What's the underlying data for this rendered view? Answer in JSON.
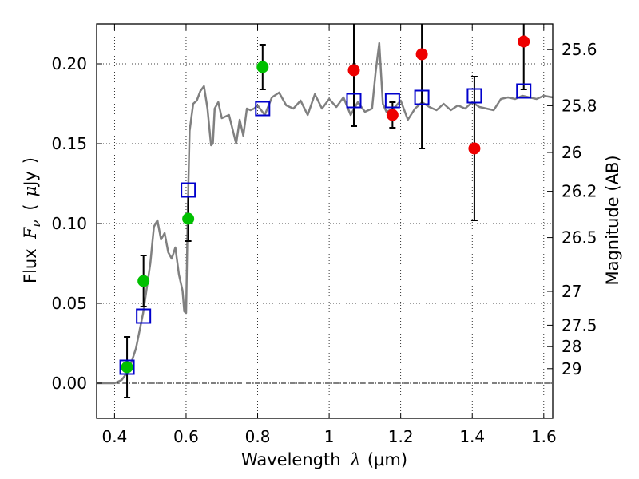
{
  "chart_data": {
    "type": "scatter",
    "xlabel": "Wavelength",
    "xlabel_symbol": "λ",
    "xlabel_unit": "(μm)",
    "ylabel": "Flux",
    "ylabel_symbol": "F",
    "ylabel_sub": "ν",
    "ylabel_unit_open": "(",
    "ylabel_unit_mu": "μ",
    "ylabel_unit": "Jy",
    "ylabel_unit_close": ")",
    "y2label": "Magnitude (AB)",
    "xlim": [
      0.35,
      1.625
    ],
    "ylim": [
      -0.022,
      0.225
    ],
    "grid": true,
    "x_ticks": [
      0.4,
      0.6,
      0.8,
      1.0,
      1.2,
      1.4,
      1.6
    ],
    "x_tick_labels": [
      "0.4",
      "0.6",
      "0.8",
      "1",
      "1.2",
      "1.4",
      "1.6"
    ],
    "y_ticks": [
      0.0,
      0.05,
      0.1,
      0.15,
      0.2
    ],
    "y_tick_labels": [
      "0.00",
      "0.05",
      "0.10",
      "0.15",
      "0.20"
    ],
    "mag_ticks": [
      {
        "label": "25.6",
        "flux": 0.2089
      },
      {
        "label": "25.8",
        "flux": 0.1738
      },
      {
        "label": "26",
        "flux": 0.1445
      },
      {
        "label": "26.2",
        "flux": 0.1202
      },
      {
        "label": "26.5",
        "flux": 0.0912
      },
      {
        "label": "27",
        "flux": 0.0575
      },
      {
        "label": "27.5",
        "flux": 0.0363
      },
      {
        "label": "28",
        "flux": 0.0229
      },
      {
        "label": "29",
        "flux": 0.0091
      }
    ],
    "model_spectrum": {
      "x": [
        0.35,
        0.4,
        0.42,
        0.44,
        0.46,
        0.48,
        0.5,
        0.51,
        0.52,
        0.53,
        0.54,
        0.55,
        0.56,
        0.57,
        0.58,
        0.59,
        0.595,
        0.6,
        0.605,
        0.61,
        0.62,
        0.63,
        0.64,
        0.65,
        0.66,
        0.665,
        0.67,
        0.675,
        0.68,
        0.69,
        0.7,
        0.72,
        0.74,
        0.75,
        0.76,
        0.77,
        0.78,
        0.79,
        0.8,
        0.82,
        0.84,
        0.86,
        0.88,
        0.9,
        0.92,
        0.94,
        0.96,
        0.98,
        1.0,
        1.02,
        1.04,
        1.06,
        1.08,
        1.1,
        1.12,
        1.13,
        1.14,
        1.15,
        1.16,
        1.18,
        1.2,
        1.22,
        1.24,
        1.26,
        1.28,
        1.3,
        1.32,
        1.34,
        1.36,
        1.38,
        1.4,
        1.42,
        1.44,
        1.46,
        1.48,
        1.5,
        1.52,
        1.54,
        1.56,
        1.58,
        1.6,
        1.625
      ],
      "y": [
        0.0,
        0.0,
        0.002,
        0.008,
        0.022,
        0.044,
        0.075,
        0.098,
        0.102,
        0.09,
        0.094,
        0.082,
        0.078,
        0.085,
        0.068,
        0.058,
        0.045,
        0.044,
        0.11,
        0.158,
        0.175,
        0.177,
        0.183,
        0.186,
        0.172,
        0.16,
        0.149,
        0.15,
        0.172,
        0.176,
        0.166,
        0.168,
        0.15,
        0.165,
        0.155,
        0.172,
        0.171,
        0.172,
        0.174,
        0.168,
        0.179,
        0.182,
        0.174,
        0.172,
        0.177,
        0.168,
        0.181,
        0.172,
        0.178,
        0.173,
        0.179,
        0.168,
        0.176,
        0.17,
        0.172,
        0.195,
        0.213,
        0.175,
        0.17,
        0.172,
        0.177,
        0.165,
        0.172,
        0.176,
        0.173,
        0.171,
        0.175,
        0.171,
        0.174,
        0.172,
        0.176,
        0.173,
        0.172,
        0.171,
        0.178,
        0.179,
        0.178,
        0.18,
        0.179,
        0.178,
        0.18,
        0.179
      ]
    },
    "series": [
      {
        "marker": "filled-circle",
        "color": "#00c000",
        "points": [
          {
            "x": 0.435,
            "y": 0.01,
            "err": 0.019
          },
          {
            "x": 0.481,
            "y": 0.064,
            "err": 0.016
          },
          {
            "x": 0.606,
            "y": 0.103,
            "err": 0.014
          },
          {
            "x": 0.814,
            "y": 0.198,
            "err": 0.014
          }
        ]
      },
      {
        "marker": "filled-circle",
        "color": "#ee0000",
        "points": [
          {
            "x": 1.069,
            "y": 0.196,
            "err": 0.035
          },
          {
            "x": 1.177,
            "y": 0.168,
            "err": 0.008
          },
          {
            "x": 1.259,
            "y": 0.206,
            "err": 0.059
          },
          {
            "x": 1.406,
            "y": 0.147,
            "err": 0.045
          },
          {
            "x": 1.544,
            "y": 0.214,
            "err": 0.03
          }
        ]
      },
      {
        "marker": "open-square",
        "color": "#0000cc",
        "points": [
          {
            "x": 0.435,
            "y": 0.01
          },
          {
            "x": 0.481,
            "y": 0.042
          },
          {
            "x": 0.606,
            "y": 0.121
          },
          {
            "x": 0.814,
            "y": 0.172
          },
          {
            "x": 1.069,
            "y": 0.177
          },
          {
            "x": 1.177,
            "y": 0.177
          },
          {
            "x": 1.259,
            "y": 0.179
          },
          {
            "x": 1.406,
            "y": 0.18
          },
          {
            "x": 1.544,
            "y": 0.183
          }
        ]
      }
    ]
  }
}
